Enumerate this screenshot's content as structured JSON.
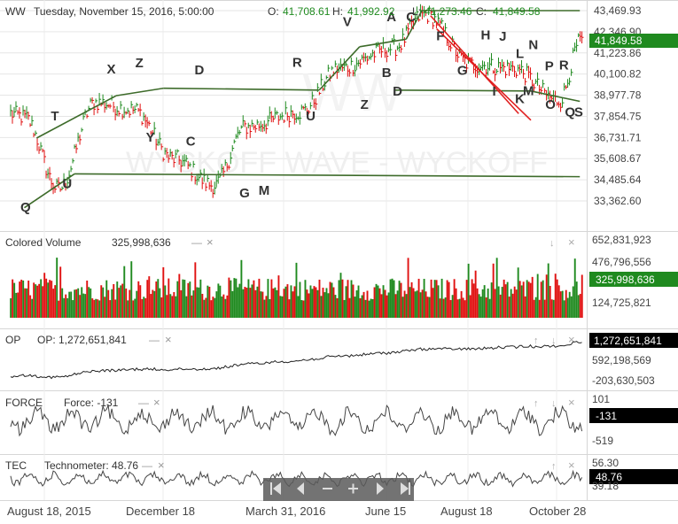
{
  "header": {
    "symbol": "WW",
    "date": "Tuesday, November 15, 2016, 5:00:00",
    "open_label": "O:",
    "open": "41,708.61",
    "high_label": "H:",
    "high": "41,992.92",
    "low_label": "L:",
    "low": "41,273.46",
    "close_label": "C:",
    "close": "41,849.58"
  },
  "watermark": "WYCKOFF WAVE - WYCKOFF",
  "watermark_big": "WW",
  "colors": {
    "up": "#1f8a1f",
    "down": "#e01010",
    "trend_line": "#3d6b2a",
    "channel": "#e02020",
    "grid": "#e6e6e6",
    "label_text": "#333333",
    "current_bg": "#1f8a1f",
    "black_bg": "#000000"
  },
  "x_axis": {
    "labels": [
      "August 18, 2015",
      "December 18",
      "March 31, 2016",
      "June 15",
      "August 18",
      "October 28"
    ]
  },
  "price_panel": {
    "y_ticks": [
      "43,469.93",
      "42,346.90",
      "41,223.86",
      "40,100.82",
      "38,977.78",
      "37,854.75",
      "36,731.71",
      "35,608.67",
      "34,485.64",
      "33,362.60"
    ],
    "current_value": "41,849.58",
    "wave_letters": [
      "T",
      "X",
      "Z",
      "D",
      "R",
      "V",
      "A",
      "C",
      "F",
      "H",
      "J",
      "N",
      "L",
      "P",
      "R",
      "Q",
      "U",
      "Y",
      "C",
      "G",
      "M",
      "U",
      "Z",
      "B",
      "D",
      "G",
      "I",
      "K",
      "M",
      "O",
      "Q",
      "S"
    ]
  },
  "chart_data": [
    {
      "type": "line",
      "title": "WW",
      "ylabel": "",
      "ylim": [
        32800,
        43470
      ],
      "x_dates": [
        "2015-08-18",
        "2015-09-15",
        "2015-10-15",
        "2015-11-15",
        "2015-12-18",
        "2016-01-20",
        "2016-02-15",
        "2016-03-31",
        "2016-05-01",
        "2016-06-15",
        "2016-07-10",
        "2016-08-18",
        "2016-09-20",
        "2016-10-28",
        "2016-11-15"
      ],
      "series": [
        {
          "values": [
            37800,
            34000,
            38600,
            38200,
            35600,
            34200,
            37300,
            38100,
            40400,
            41500,
            43300,
            40600,
            40400,
            38700,
            41850
          ]
        }
      ]
    },
    {
      "type": "bar",
      "title": "Colored Volume",
      "current_value": "325,998,636",
      "y_ticks": [
        "652,831,923",
        "476,796,556",
        "124,725,821"
      ],
      "last_value": 325998636
    },
    {
      "type": "line",
      "title": "OP",
      "label": "OP: 1,272,651,841",
      "current_value": "1,272,651,841",
      "y_ticks": [
        "592,198,569",
        "-203,630,503"
      ],
      "last_value": 1272651841
    },
    {
      "type": "line",
      "title": "FORCE",
      "label": "Force: -131",
      "current_value": "-131",
      "y_ticks": [
        "101",
        "-519"
      ],
      "last_value": -131
    },
    {
      "type": "line",
      "title": "TEC",
      "label": "Technometer: 48.76",
      "current_value": "48.76",
      "y_ticks": [
        "56.30",
        "39.18"
      ],
      "last_value": 48.76
    }
  ],
  "icons": {
    "minus": "—",
    "close": "×",
    "up": "↑",
    "down": "↓"
  }
}
